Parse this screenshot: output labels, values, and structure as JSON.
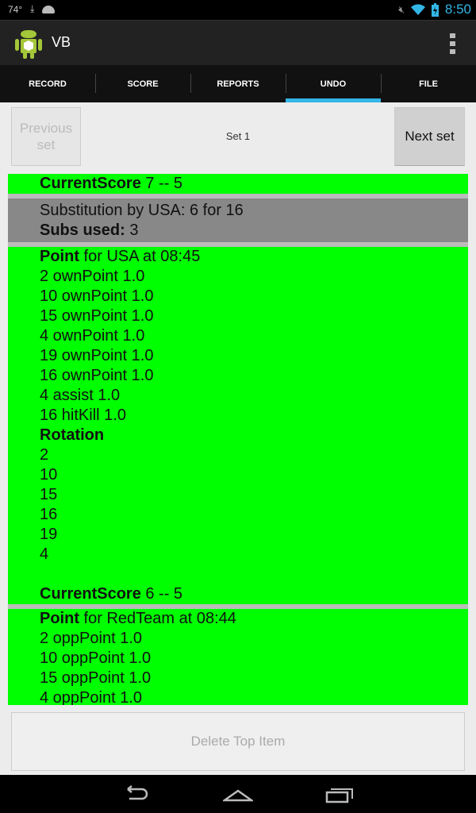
{
  "status": {
    "temp": "74°",
    "time": "8:50",
    "icons": [
      "download-icon",
      "android-icon",
      "mute-icon",
      "wifi-icon",
      "battery-charging-icon"
    ]
  },
  "app": {
    "title": "VB"
  },
  "tabs": [
    {
      "label": "RECORD"
    },
    {
      "label": "SCORE"
    },
    {
      "label": "REPORTS"
    },
    {
      "label": "UNDO",
      "active": true
    },
    {
      "label": "FILE"
    }
  ],
  "set_nav": {
    "prev_line1": "Previous",
    "prev_line2": "set",
    "label": "Set 1",
    "next": "Next set"
  },
  "items": [
    {
      "color": "#00ff00",
      "lines": [
        {
          "bold": "CurrentScore",
          "text": " 7 -- 5"
        }
      ]
    },
    {
      "color": "#888888",
      "lines": [
        {
          "bold": "",
          "text": "Substitution by USA: 6 for 16"
        },
        {
          "bold": "Subs used:",
          "text": " 3"
        }
      ]
    },
    {
      "color": "#00ff00",
      "lines": [
        {
          "bold": "Point",
          "text": " for USA at 08:45"
        },
        {
          "bold": "",
          "text": "2 ownPoint 1.0"
        },
        {
          "bold": "",
          "text": "10 ownPoint 1.0"
        },
        {
          "bold": "",
          "text": "15 ownPoint 1.0"
        },
        {
          "bold": "",
          "text": "4 ownPoint 1.0"
        },
        {
          "bold": "",
          "text": "19 ownPoint 1.0"
        },
        {
          "bold": "",
          "text": "16 ownPoint 1.0"
        },
        {
          "bold": "",
          "text": "4 assist 1.0"
        },
        {
          "bold": "",
          "text": "16 hitKill 1.0"
        },
        {
          "bold": "Rotation",
          "text": ""
        },
        {
          "bold": "",
          "text": "2"
        },
        {
          "bold": "",
          "text": "10"
        },
        {
          "bold": "",
          "text": "15"
        },
        {
          "bold": "",
          "text": "16"
        },
        {
          "bold": "",
          "text": "19"
        },
        {
          "bold": "",
          "text": "4"
        },
        {
          "bold": "",
          "text": ""
        },
        {
          "bold": "CurrentScore",
          "text": " 6 -- 5"
        }
      ]
    },
    {
      "color": "#00ff00",
      "lines": [
        {
          "bold": "Point",
          "text": " for RedTeam at 08:44"
        },
        {
          "bold": "",
          "text": "2 oppPoint 1.0"
        },
        {
          "bold": "",
          "text": "10 oppPoint 1.0"
        },
        {
          "bold": "",
          "text": "15 oppPoint 1.0"
        },
        {
          "bold": "",
          "text": "4 oppPoint 1.0"
        }
      ]
    }
  ],
  "delete_button": "Delete Top Item"
}
